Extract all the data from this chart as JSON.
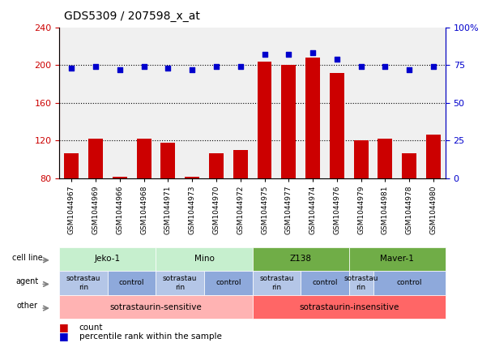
{
  "title": "GDS5309 / 207598_x_at",
  "samples": [
    "GSM1044967",
    "GSM1044969",
    "GSM1044966",
    "GSM1044968",
    "GSM1044971",
    "GSM1044973",
    "GSM1044970",
    "GSM1044972",
    "GSM1044975",
    "GSM1044977",
    "GSM1044974",
    "GSM1044976",
    "GSM1044979",
    "GSM1044981",
    "GSM1044978",
    "GSM1044980"
  ],
  "counts": [
    107,
    122,
    82,
    122,
    118,
    82,
    107,
    110,
    204,
    200,
    208,
    192,
    120,
    122,
    107,
    126
  ],
  "percentiles": [
    73,
    74,
    72,
    74,
    73,
    72,
    74,
    74,
    82,
    82,
    83,
    79,
    74,
    74,
    72,
    74
  ],
  "ylim_left": [
    80,
    240
  ],
  "ylim_right": [
    0,
    100
  ],
  "yticks_left": [
    80,
    120,
    160,
    200,
    240
  ],
  "yticks_right": [
    0,
    25,
    50,
    75,
    100
  ],
  "ytick_labels_left": [
    "80",
    "120",
    "160",
    "200",
    "240"
  ],
  "ytick_labels_right": [
    "0",
    "25",
    "50",
    "75",
    "100%"
  ],
  "cell_line_groups": [
    {
      "label": "Jeko-1",
      "start": 0,
      "end": 3,
      "color": "#c6efce"
    },
    {
      "label": "Mino",
      "start": 4,
      "end": 7,
      "color": "#c6efce"
    },
    {
      "label": "Z138",
      "start": 8,
      "end": 11,
      "color": "#70ad47"
    },
    {
      "label": "Maver-1",
      "start": 12,
      "end": 15,
      "color": "#70ad47"
    }
  ],
  "agent_groups": [
    {
      "label": "sotrastaurin",
      "start": 0,
      "end": 1,
      "color": "#b4c6e7"
    },
    {
      "label": "control",
      "start": 2,
      "end": 3,
      "color": "#8ea9db"
    },
    {
      "label": "sotrastaurin",
      "start": 4,
      "end": 5,
      "color": "#b4c6e7"
    },
    {
      "label": "control",
      "start": 6,
      "end": 7,
      "color": "#8ea9db"
    },
    {
      "label": "sotrastaurin",
      "start": 8,
      "end": 9,
      "color": "#b4c6e7"
    },
    {
      "label": "control",
      "start": 10,
      "end": 11,
      "color": "#8ea9db"
    },
    {
      "label": "sotrastaurin",
      "start": 12,
      "end": 12,
      "color": "#b4c6e7"
    },
    {
      "label": "control",
      "start": 13,
      "end": 15,
      "color": "#8ea9db"
    }
  ],
  "other_groups": [
    {
      "label": "sotrastaurin-sensitive",
      "start": 0,
      "end": 7,
      "color": "#ffb3b3"
    },
    {
      "label": "sotrastaurin-insensitive",
      "start": 8,
      "end": 15,
      "color": "#ff6666"
    }
  ],
  "row_labels": [
    "cell line",
    "agent",
    "other"
  ],
  "bar_color": "#cc0000",
  "dot_color": "#0000cc",
  "grid_color": "black",
  "bg_color": "white",
  "left_axis_color": "#cc0000",
  "right_axis_color": "#0000cc"
}
